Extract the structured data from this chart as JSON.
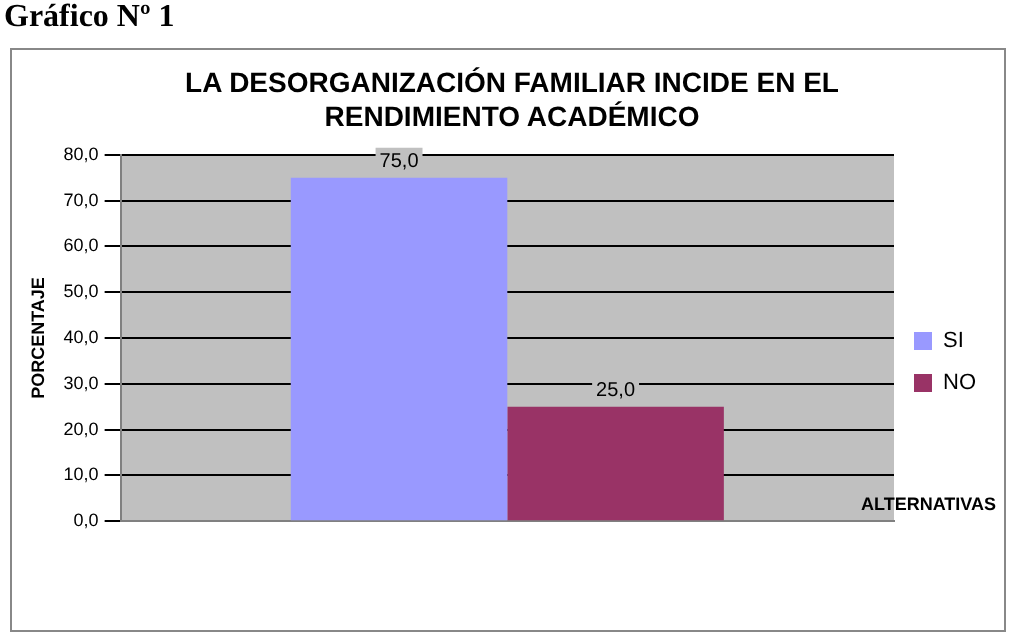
{
  "chart_data": {
    "type": "bar",
    "title": "LA DESORGANIZACIÓN FAMILIAR INCIDE EN EL RENDIMIENTO ACADÉMICO",
    "xlabel": "ALTERNATIVAS",
    "ylabel": "PORCENTAJE",
    "annotations": [
      "Gráfico Nº 1"
    ],
    "categories": [
      null
    ],
    "series": [
      {
        "name": "SI",
        "color": "#9999ff",
        "values": [
          75.0
        ],
        "value_labels": [
          "75,0"
        ]
      },
      {
        "name": "NO",
        "color": "#993366",
        "values": [
          25.0
        ],
        "value_labels": [
          "25,0"
        ]
      }
    ],
    "ylim": [
      0,
      80
    ],
    "yticks": [
      {
        "value": 0,
        "label": "0,0"
      },
      {
        "value": 10,
        "label": "10,0"
      },
      {
        "value": 20,
        "label": "20,0"
      },
      {
        "value": 30,
        "label": "30,0"
      },
      {
        "value": 40,
        "label": "40,0"
      },
      {
        "value": 50,
        "label": "50,0"
      },
      {
        "value": 60,
        "label": "60,0"
      },
      {
        "value": 70,
        "label": "70,0"
      },
      {
        "value": 80,
        "label": "80,0"
      }
    ],
    "grid": "y",
    "legend": "right"
  }
}
